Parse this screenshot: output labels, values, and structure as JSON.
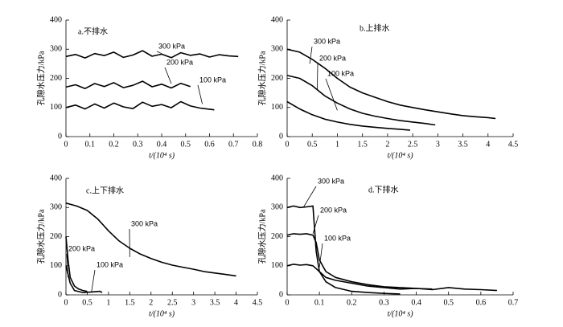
{
  "chart_data": [
    {
      "type": "line",
      "title": "a.不排水",
      "ylabel": "孔隙水压力/kPa",
      "xlabel": "t/(10⁴ s)",
      "xlim": [
        0,
        0.8
      ],
      "xticks": [
        0,
        0.1,
        0.2,
        0.3,
        0.4,
        0.5,
        0.6,
        0.7,
        0.8
      ],
      "ylim": [
        0,
        400
      ],
      "yticks": [
        0,
        100,
        200,
        300,
        400
      ],
      "series": [
        {
          "name": "300 kPa",
          "color": "#000000",
          "x": [
            0,
            0.04,
            0.08,
            0.12,
            0.16,
            0.2,
            0.24,
            0.28,
            0.32,
            0.36,
            0.4,
            0.44,
            0.48,
            0.52,
            0.56,
            0.6,
            0.64,
            0.68,
            0.72
          ],
          "values": [
            275,
            282,
            270,
            285,
            278,
            290,
            272,
            280,
            295,
            276,
            283,
            271,
            288,
            279,
            284,
            273,
            281,
            277,
            275
          ]
        },
        {
          "name": "200 kPa",
          "color": "#000000",
          "x": [
            0,
            0.04,
            0.08,
            0.12,
            0.16,
            0.2,
            0.24,
            0.28,
            0.32,
            0.36,
            0.4,
            0.44,
            0.48,
            0.52
          ],
          "values": [
            170,
            178,
            165,
            182,
            172,
            185,
            168,
            176,
            190,
            171,
            180,
            167,
            183,
            172
          ]
        },
        {
          "name": "100 kPa",
          "color": "#000000",
          "x": [
            0,
            0.04,
            0.08,
            0.12,
            0.16,
            0.2,
            0.24,
            0.28,
            0.32,
            0.36,
            0.4,
            0.44,
            0.48,
            0.52,
            0.56,
            0.62
          ],
          "values": [
            100,
            108,
            95,
            112,
            98,
            115,
            102,
            96,
            118,
            104,
            110,
            99,
            120,
            105,
            98,
            92
          ]
        }
      ]
    },
    {
      "type": "line",
      "title": "b.上排水",
      "ylabel": "孔隙水压力/kPa",
      "xlabel": "t/(10⁴ s)",
      "xlim": [
        0,
        4.5
      ],
      "xticks": [
        0,
        0.5,
        1,
        1.5,
        2,
        2.5,
        3,
        3.5,
        4,
        4.5
      ],
      "ylim": [
        0,
        400
      ],
      "yticks": [
        0,
        100,
        200,
        300,
        400
      ],
      "series": [
        {
          "name": "300 kPa",
          "color": "#000000",
          "x": [
            0,
            0.25,
            0.5,
            0.75,
            1,
            1.25,
            1.5,
            1.75,
            2,
            2.25,
            2.5,
            2.75,
            3,
            3.25,
            3.5,
            3.75,
            4,
            4.15
          ],
          "values": [
            300,
            290,
            265,
            235,
            200,
            170,
            150,
            135,
            120,
            108,
            100,
            92,
            85,
            78,
            72,
            68,
            65,
            62
          ]
        },
        {
          "name": "200 kPa",
          "color": "#000000",
          "x": [
            0,
            0.25,
            0.5,
            0.75,
            1,
            1.25,
            1.5,
            1.75,
            2,
            2.25,
            2.5,
            2.75,
            2.95
          ],
          "values": [
            210,
            200,
            175,
            140,
            115,
            95,
            80,
            70,
            62,
            55,
            50,
            45,
            40
          ]
        },
        {
          "name": "100 kPa",
          "color": "#000000",
          "x": [
            0,
            0.25,
            0.5,
            0.75,
            1,
            1.25,
            1.5,
            1.75,
            2,
            2.25,
            2.45
          ],
          "values": [
            120,
            95,
            75,
            60,
            50,
            42,
            36,
            32,
            28,
            25,
            22
          ]
        }
      ]
    },
    {
      "type": "line",
      "title": "c.上下排水",
      "ylabel": "孔隙水压力/kPa",
      "xlabel": "t/(10⁴ s)",
      "xlim": [
        0,
        4.5
      ],
      "xticks": [
        0,
        0.5,
        1,
        1.5,
        2,
        2.5,
        3,
        3.5,
        4,
        4.5
      ],
      "ylim": [
        0,
        400
      ],
      "yticks": [
        0,
        100,
        200,
        300,
        400
      ],
      "series": [
        {
          "name": "300 kPa",
          "color": "#000000",
          "x": [
            0,
            0.25,
            0.5,
            0.75,
            1,
            1.25,
            1.5,
            1.75,
            2,
            2.25,
            2.5,
            2.75,
            3,
            3.25,
            3.5,
            3.75,
            4
          ],
          "values": [
            315,
            305,
            290,
            260,
            220,
            185,
            160,
            140,
            125,
            112,
            102,
            95,
            88,
            80,
            75,
            70,
            65
          ]
        },
        {
          "name": "200 kPa",
          "color": "#000000",
          "x": [
            0,
            0.05,
            0.1,
            0.2,
            0.3,
            0.4,
            0.5
          ],
          "values": [
            200,
            120,
            60,
            30,
            20,
            15,
            12
          ]
        },
        {
          "name": "100 kPa",
          "color": "#000000",
          "x": [
            0,
            0.1,
            0.2,
            0.4,
            0.6,
            0.8,
            0.85
          ],
          "values": [
            100,
            40,
            15,
            8,
            10,
            12,
            8
          ]
        }
      ]
    },
    {
      "type": "line",
      "title": "d.下排水",
      "ylabel": "孔隙水压力/kPa",
      "xlabel": "t/(10⁴ s)",
      "xlim": [
        0,
        0.7
      ],
      "xticks": [
        0,
        0.1,
        0.2,
        0.3,
        0.4,
        0.5,
        0.6,
        0.7
      ],
      "ylim": [
        0,
        400
      ],
      "yticks": [
        0,
        100,
        200,
        300,
        400
      ],
      "series": [
        {
          "name": "300 kPa",
          "color": "#000000",
          "x": [
            0,
            0.02,
            0.04,
            0.06,
            0.08,
            0.09,
            0.1,
            0.12,
            0.15,
            0.2,
            0.25,
            0.3,
            0.35,
            0.4,
            0.45,
            0.5,
            0.55,
            0.6,
            0.65
          ],
          "values": [
            300,
            305,
            300,
            302,
            305,
            150,
            80,
            60,
            50,
            40,
            30,
            25,
            20,
            22,
            18,
            25,
            20,
            18,
            15
          ]
        },
        {
          "name": "200 kPa",
          "color": "#000000",
          "x": [
            0,
            0.02,
            0.04,
            0.06,
            0.08,
            0.09,
            0.1,
            0.12,
            0.15,
            0.2,
            0.25,
            0.3,
            0.35,
            0.4,
            0.45
          ],
          "values": [
            205,
            210,
            208,
            210,
            205,
            180,
            120,
            80,
            60,
            45,
            35,
            28,
            25,
            22,
            20
          ]
        },
        {
          "name": "100 kPa",
          "color": "#000000",
          "x": [
            0,
            0.02,
            0.04,
            0.06,
            0.08,
            0.1,
            0.12,
            0.15,
            0.2,
            0.25,
            0.3,
            0.35
          ],
          "values": [
            100,
            105,
            102,
            104,
            100,
            80,
            45,
            25,
            12,
            8,
            5,
            3
          ]
        }
      ]
    }
  ]
}
